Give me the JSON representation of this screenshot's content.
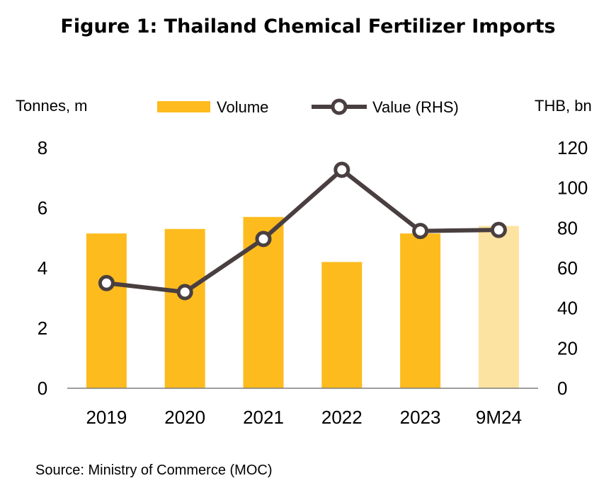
{
  "chart_data": {
    "title": "Figure 1: Thailand Chemical Fertilizer Imports",
    "type": "bar+line",
    "categories": [
      "2019",
      "2020",
      "2021",
      "2022",
      "2023",
      "9M24"
    ],
    "left_axis": {
      "label": "Tonnes, m",
      "ylim": [
        0,
        8
      ],
      "ticks": [
        "0",
        "2",
        "4",
        "6",
        "8"
      ]
    },
    "right_axis": {
      "label": "THB, bn",
      "ylim": [
        0,
        120
      ],
      "ticks": [
        "0",
        "20",
        "40",
        "60",
        "80",
        "100",
        "120"
      ]
    },
    "series": [
      {
        "name": "Volume",
        "type": "bar",
        "axis": "left",
        "values": [
          5.15,
          5.3,
          5.7,
          4.2,
          5.15,
          5.4
        ],
        "color": "#FDBB1E",
        "highlight_color": "#FDE3A1",
        "highlight_index": 5
      },
      {
        "name": "Value (RHS)",
        "type": "line",
        "axis": "right",
        "values": [
          52.5,
          48,
          74.5,
          109,
          78.5,
          79
        ],
        "color": "#4A3F40"
      }
    ],
    "legend_position": "top",
    "grid": false,
    "source": "Source: Ministry of Commerce (MOC)"
  }
}
